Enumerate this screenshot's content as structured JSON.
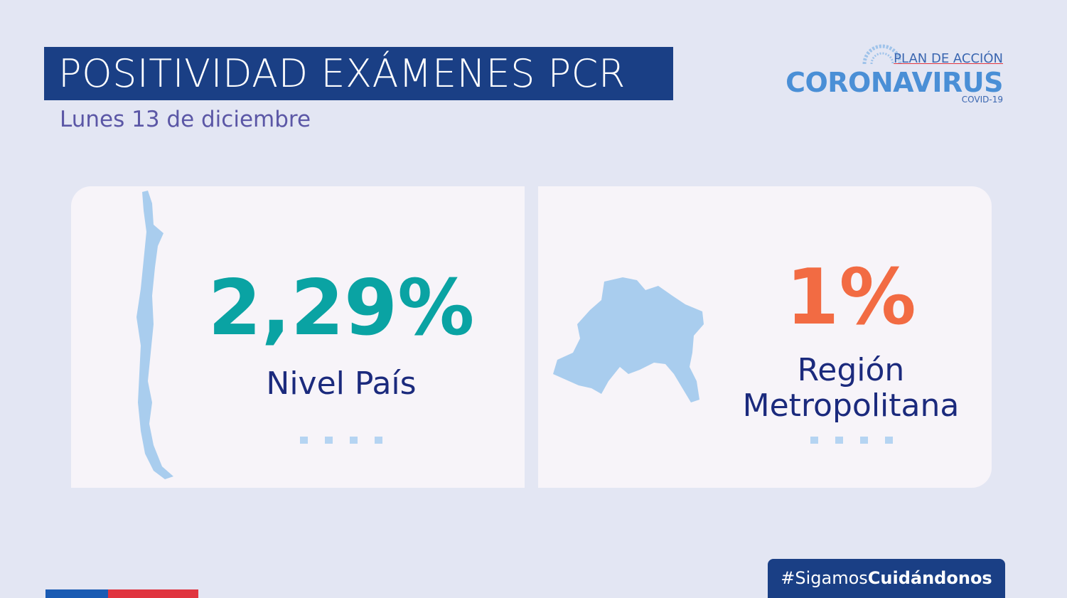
{
  "header": {
    "title": "POSITIVIDAD EXÁMENES PCR",
    "subtitle": "Lunes 13 de diciembre"
  },
  "logo": {
    "top": "PLAN DE ACCIÓN",
    "main": "CORONAVIRUS",
    "sub": "COVID-19"
  },
  "cards": [
    {
      "value": "2,29%",
      "label": [
        "Nivel País"
      ]
    },
    {
      "value": "1%",
      "label": [
        "Región",
        "Metropolitana"
      ]
    }
  ],
  "hashtag": {
    "prefix": "#Sigamos",
    "bold": "Cuidándonos"
  }
}
